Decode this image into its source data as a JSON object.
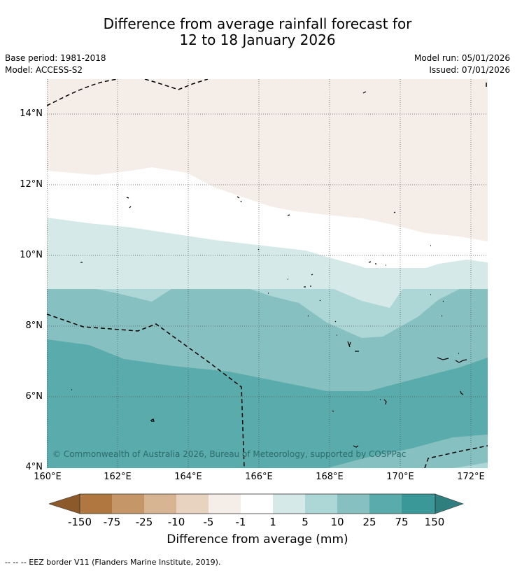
{
  "title_line1": "Difference from average rainfall forecast for",
  "title_line2": "12 to 18 January 2026",
  "base_period": "Base period: 1981-2018",
  "model": "Model: ACCESS-S2",
  "model_run": "Model run: 05/01/2026",
  "issued": "Issued: 07/01/2026",
  "lat_labels": [
    "14°N",
    "12°N",
    "10°N",
    "8°N",
    "6°N",
    "4°N"
  ],
  "lon_labels": [
    "160°E",
    "162°E",
    "164°E",
    "166°E",
    "168°E",
    "170°E",
    "172°E"
  ],
  "copyright": "© Commonwealth of Australia 2026, Bureau of Meteorology, supported by COSPPac",
  "colorbar": {
    "ticks": [
      "-150",
      "-75",
      "-25",
      "-10",
      "-5",
      "-1",
      "1",
      "5",
      "10",
      "25",
      "75",
      "150"
    ],
    "colors": [
      "#8c5a2a",
      "#b07840",
      "#c49668",
      "#d8b592",
      "#e8d2c0",
      "#f5ede8",
      "#ffffff",
      "#d5e9e9",
      "#add6d6",
      "#86c0c0",
      "#5aabab",
      "#3a9898",
      "#2f7f7f"
    ],
    "label": "Difference from average (mm)"
  },
  "footer": "--  --  -- EEZ border V11 (Flanders Marine Institute, 2019)."
}
